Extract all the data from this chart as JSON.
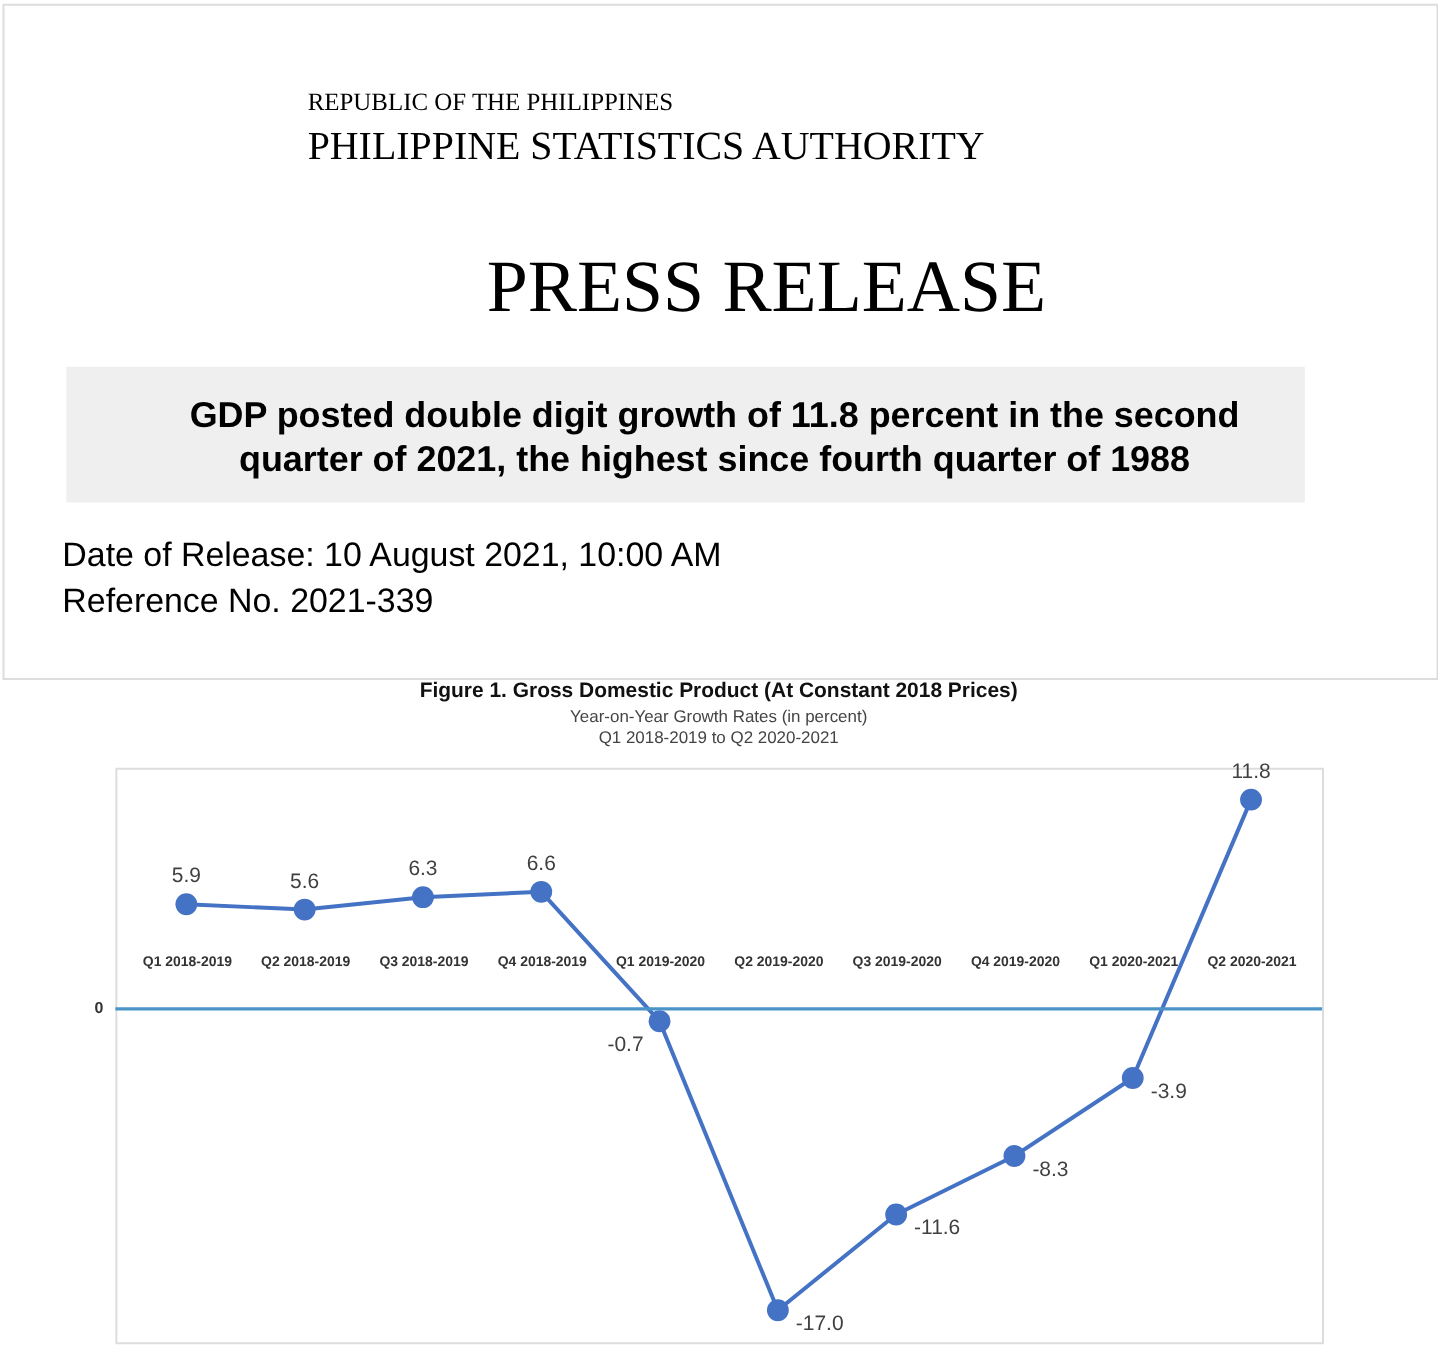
{
  "chart_data": {
    "type": "line",
    "title": "Figure 1. Gross Domestic Product (At Constant 2018 Prices)",
    "subtitle": "Year-on-Year Growth Rates (in percent)\nQ1 2018-2019 to Q2 2020-2021",
    "annotations": [
      "REPUBLIC OF THE PHILIPPINES",
      "PHILIPPINE STATISTICS AUTHORITY",
      "PRESS RELEASE",
      "GDP posted double digit growth of 11.8 percent in the second\nquarter of 2021, the highest since fourth quarter of 1988",
      "Date of Release: 10 August 2021, 10:00 AM",
      "Reference No. 2021-339"
    ],
    "categories": [
      "Q1 2018-2019",
      "Q2 2018-2019",
      "Q3 2018-2019",
      "Q4 2018-2019",
      "Q1 2019-2020",
      "Q2 2019-2020",
      "Q3 2019-2020",
      "Q4 2019-2020",
      "Q1 2020-2021",
      "Q2 2020-2021"
    ],
    "series": [
      {
        "color": "#4472c4",
        "values": [
          5.9,
          5.6,
          6.3,
          6.6,
          -0.7,
          -17.0,
          -11.6,
          -8.3,
          -3.9,
          11.8
        ],
        "value_labels": [
          "5.9",
          "5.6",
          "6.3",
          "6.6",
          "-0.7",
          "-17.0",
          "-11.6",
          "-8.3",
          "-3.9",
          "11.8"
        ]
      }
    ],
    "ref_lines": [
      {
        "axis": "y",
        "value": 0,
        "label": "0",
        "color": "#4a94c8"
      }
    ],
    "marker": "circle",
    "line_style": "solid",
    "grid": false
  }
}
